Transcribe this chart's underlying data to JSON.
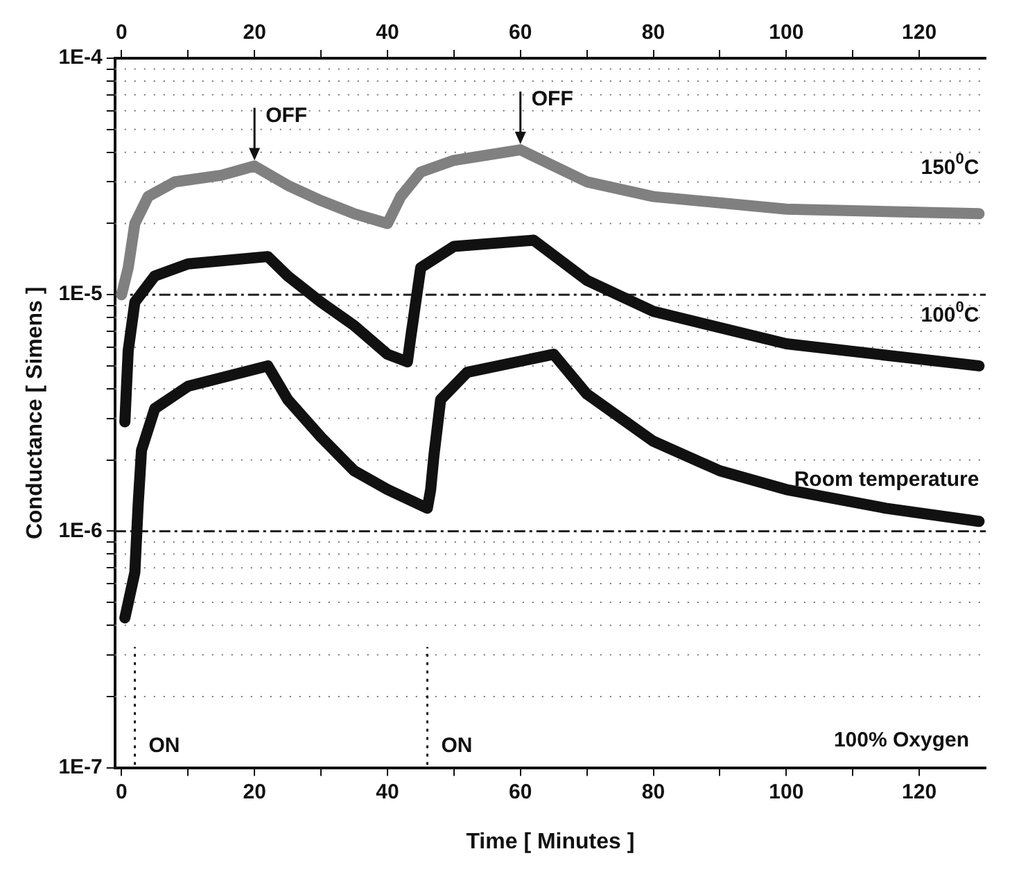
{
  "chart_data": {
    "type": "line",
    "xlabel": "Time [ Minutes ]",
    "ylabel": "Conductance [ Simens ]",
    "xlim": [
      -1,
      130
    ],
    "xticks": [
      0,
      {
        "value": 10,
        "label": null
      },
      20,
      {
        "value": 30,
        "label": null
      },
      40,
      {
        "value": 50,
        "label": null
      },
      60,
      {
        "value": 70,
        "label": null
      },
      80,
      {
        "value": 90,
        "label": null
      },
      100,
      {
        "value": 110,
        "label": null
      },
      120
    ],
    "x2lim": [
      -1,
      130
    ],
    "x2ticks": [
      0,
      {
        "value": 10,
        "label": null
      },
      20,
      {
        "value": 30,
        "label": null
      },
      40,
      {
        "value": 50,
        "label": null
      },
      60,
      {
        "value": 70,
        "label": null
      },
      80,
      {
        "value": 90,
        "label": null
      },
      100,
      {
        "value": 110,
        "label": null
      },
      120
    ],
    "ylim": [
      1e-07,
      0.0001
    ],
    "log": "y",
    "yticks": [
      {
        "value": 1e-07,
        "label": "1E-7"
      },
      {
        "value": 2e-07,
        "label": null
      },
      {
        "value": 3e-07,
        "label": null
      },
      {
        "value": 4e-07,
        "label": null
      },
      {
        "value": 5e-07,
        "label": null
      },
      {
        "value": 6e-07,
        "label": null
      },
      {
        "value": 7e-07,
        "label": null
      },
      {
        "value": 8e-07,
        "label": null
      },
      {
        "value": 9e-07,
        "label": null
      },
      {
        "value": 1e-06,
        "label": "1E-6"
      },
      {
        "value": 2e-06,
        "label": null
      },
      {
        "value": 3e-06,
        "label": null
      },
      {
        "value": 4e-06,
        "label": null
      },
      {
        "value": 5e-06,
        "label": null
      },
      {
        "value": 6e-06,
        "label": null
      },
      {
        "value": 7e-06,
        "label": null
      },
      {
        "value": 8e-06,
        "label": null
      },
      {
        "value": 9e-06,
        "label": null
      },
      {
        "value": 1e-05,
        "label": "1E-5"
      },
      {
        "value": 2e-05,
        "label": null
      },
      {
        "value": 3e-05,
        "label": null
      },
      {
        "value": 4e-05,
        "label": null
      },
      {
        "value": 5e-05,
        "label": null
      },
      {
        "value": 6e-05,
        "label": null
      },
      {
        "value": 7e-05,
        "label": null
      },
      {
        "value": 8e-05,
        "label": null
      },
      {
        "value": 9e-05,
        "label": null
      },
      {
        "value": 0.0001,
        "label": "1E-4"
      }
    ],
    "grid": "y",
    "legend": false,
    "marker": "square",
    "series": [
      {
        "name": "150$^{0}$C",
        "color": "#808080",
        "x": [
          0,
          1,
          2,
          4,
          8,
          15,
          20,
          25,
          30,
          35,
          40,
          42,
          45,
          50,
          60,
          70,
          80,
          100,
          129
        ],
        "values": [
          1e-05,
          1.3e-05,
          2e-05,
          2.6e-05,
          3e-05,
          3.2e-05,
          3.5e-05,
          2.9e-05,
          2.5e-05,
          2.2e-05,
          2e-05,
          2.6e-05,
          3.3e-05,
          3.7e-05,
          4.1e-05,
          3e-05,
          2.6e-05,
          2.3e-05,
          2.2e-05
        ]
      },
      {
        "name": "100$^{0}$C",
        "color": "#111111",
        "x": [
          0.5,
          1,
          2,
          5,
          10,
          22,
          25,
          30,
          35,
          40,
          43,
          43.5,
          45,
          50,
          62,
          70,
          80,
          100,
          129
        ],
        "values": [
          2.9e-06,
          5.8e-06,
          9.3e-06,
          1.2e-05,
          1.35e-05,
          1.45e-05,
          1.2e-05,
          9.3e-06,
          7.4e-06,
          5.6e-06,
          5.2e-06,
          6.6e-06,
          1.3e-05,
          1.6e-05,
          1.7e-05,
          1.15e-05,
          8.5e-06,
          6.2e-06,
          5e-06
        ]
      },
      {
        "name": "Room temperature",
        "color": "#111111",
        "x": [
          0.5,
          2,
          2.5,
          3,
          5,
          10,
          22,
          25,
          30,
          35,
          40,
          46,
          46.5,
          47,
          48,
          52,
          65,
          70,
          80,
          90,
          100,
          115,
          129
        ],
        "values": [
          4.3e-07,
          6.7e-07,
          1.3e-06,
          2.2e-06,
          3.3e-06,
          4.1e-06,
          5e-06,
          3.6e-06,
          2.5e-06,
          1.8e-06,
          1.5e-06,
          1.25e-06,
          1.5e-06,
          2.1e-06,
          3.6e-06,
          4.7e-06,
          5.6e-06,
          3.8e-06,
          2.4e-06,
          1.8e-06,
          1.5e-06,
          1.25e-06,
          1.1e-06
        ]
      }
    ],
    "ref_lines": [
      {
        "axis": "x",
        "value": 2,
        "label": "ON",
        "line_style": "dotted"
      },
      {
        "axis": "x",
        "value": 46,
        "label": "ON",
        "line_style": "dotted"
      }
    ],
    "annotations": [
      {
        "text": "OFF",
        "x": 20,
        "y": 3.5e-05
      },
      {
        "text": "OFF",
        "x": 60,
        "y": 4.1e-05
      },
      "100% Oxygen"
    ]
  }
}
